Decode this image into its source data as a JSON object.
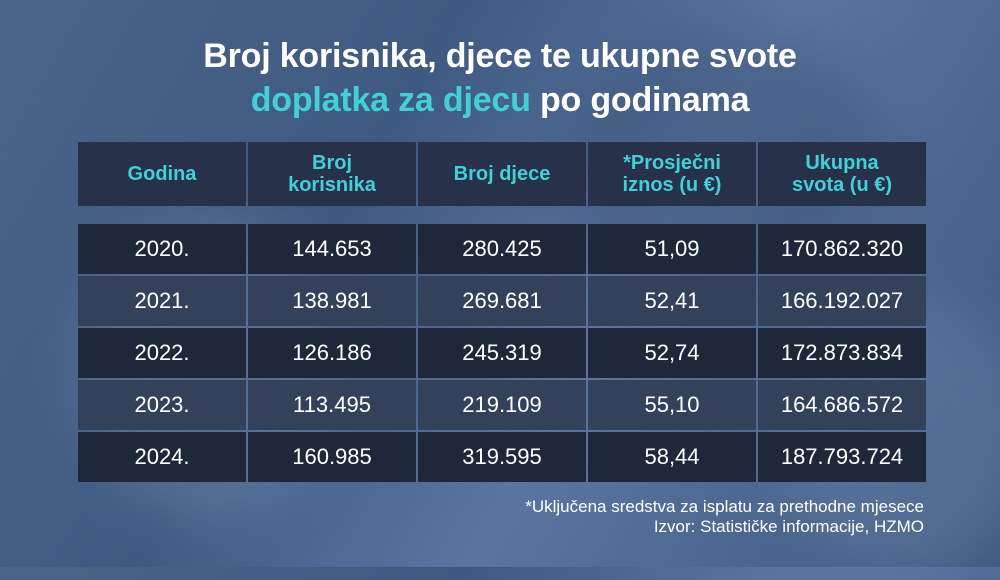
{
  "title": {
    "line1": "Broj korisnika, djece te ukupne svote",
    "line2_accent": "doplatka za djecu",
    "line2_rest": "po godinama"
  },
  "colors": {
    "accent": "#3fd0d8",
    "header_bg": "#27324a",
    "row_dark": "#1f283b",
    "row_light": "#34415a"
  },
  "chart_data": {
    "type": "table",
    "columns": [
      "Godina",
      "Broj korisnika",
      "Broj djece",
      "*Prosječni iznos (u €)",
      "Ukupna svota (u €)"
    ],
    "rows": [
      [
        "2020.",
        "144.653",
        "280.425",
        "51,09",
        "170.862.320"
      ],
      [
        "2021.",
        "138.981",
        "269.681",
        "52,41",
        "166.192.027"
      ],
      [
        "2022.",
        "126.186",
        "245.319",
        "52,74",
        "172.873.834"
      ],
      [
        "2023.",
        "113.495",
        "219.109",
        "55,10",
        "164.686.572"
      ],
      [
        "2024.",
        "160.985",
        "319.595",
        "58,44",
        "187.793.724"
      ]
    ]
  },
  "footnotes": {
    "note": "*Uključena sredstva za isplatu za prethodne mjesece",
    "source": "Izvor: Statističke informacije, HZMO"
  }
}
